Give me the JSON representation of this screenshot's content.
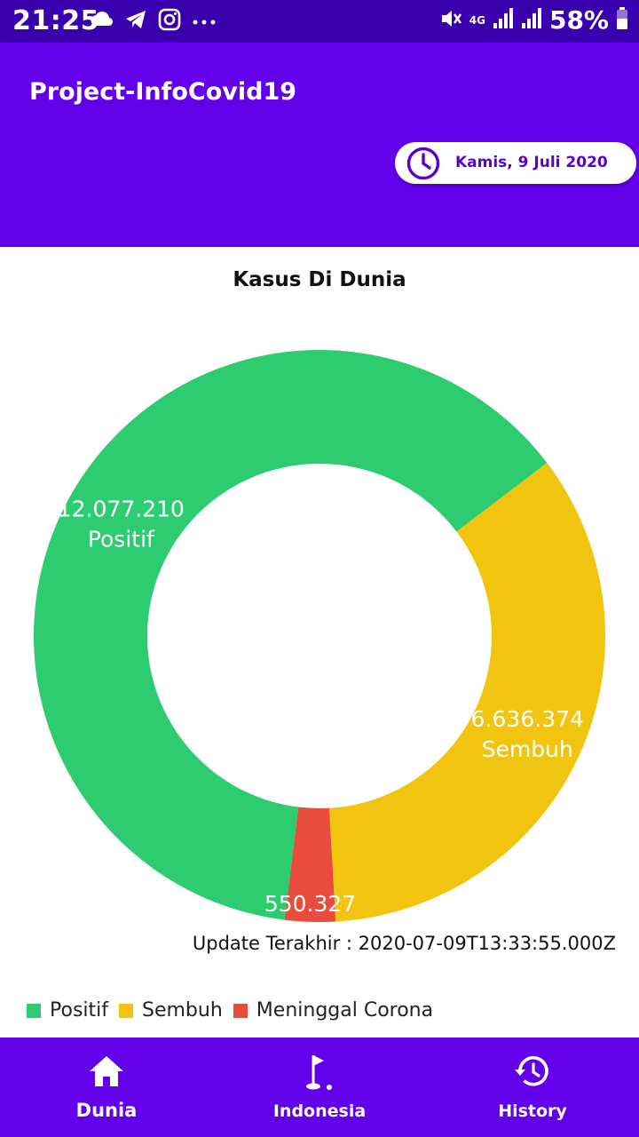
{
  "status_bar": {
    "time": "21:25",
    "network": "4G",
    "battery": "58%",
    "left_icons": [
      "cloud-icon",
      "telegram-icon",
      "instagram-icon",
      "more-dots-icon"
    ],
    "right_icons": [
      "mute-icon",
      "signal-icon",
      "signal-icon",
      "battery-icon"
    ]
  },
  "app_bar": {
    "title": "Project-InfoCovid19",
    "date": "Kamis, 9 Juli 2020",
    "date_icon": "clock-icon"
  },
  "main": {
    "title": "Kasus Di Dunia",
    "update": "Update Terakhir : 2020-07-09T13:33:55.000Z"
  },
  "chart_data": {
    "type": "pie",
    "donut": true,
    "title": "Kasus Di Dunia",
    "slices": [
      {
        "label": "Positif",
        "value": 12077210,
        "display": "12.077.210",
        "color": "#2ecc71"
      },
      {
        "label": "Sembuh",
        "value": 6636374,
        "display": "6.636.374",
        "color": "#f1c40f"
      },
      {
        "label": "Meninggal",
        "value": 550327,
        "display": "550.327",
        "color": "#e74c3c"
      }
    ],
    "legend": [
      "Positif",
      "Sembuh",
      "Meninggal Corona"
    ],
    "legend_position": "bottom-left"
  },
  "bottom_nav": {
    "items": [
      {
        "label": "Dunia",
        "icon": "home-icon",
        "active": true
      },
      {
        "label": "Indonesia",
        "icon": "golf-flag-icon",
        "active": false
      },
      {
        "label": "History",
        "icon": "history-icon",
        "active": false
      }
    ]
  },
  "colors": {
    "primary": "#6200ea",
    "status_bar": "#3a00b0",
    "positif": "#2ecc71",
    "sembuh": "#f1c40f",
    "meninggal": "#e74c3c"
  }
}
